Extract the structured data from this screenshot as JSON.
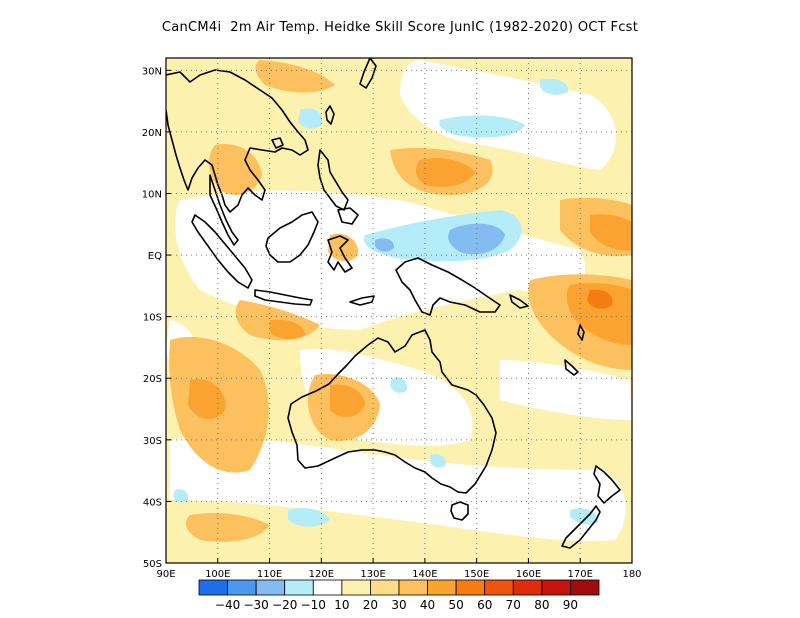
{
  "title": "CanCM4i  2m Air Temp. Heidke Skill Score JunIC (1982-2020) OCT Fcst",
  "map": {
    "lon_range": [
      90,
      180
    ],
    "lat_range": [
      -50,
      32
    ],
    "lat_ticks": [
      {
        "lat": 30,
        "label": "30N"
      },
      {
        "lat": 20,
        "label": "20N"
      },
      {
        "lat": 10,
        "label": "10N"
      },
      {
        "lat": 0,
        "label": "EQ"
      },
      {
        "lat": -10,
        "label": "10S"
      },
      {
        "lat": -20,
        "label": "20S"
      },
      {
        "lat": -30,
        "label": "30S"
      },
      {
        "lat": -40,
        "label": "40S"
      },
      {
        "lat": -50,
        "label": "50S"
      }
    ],
    "lon_ticks": [
      {
        "lon": 90,
        "label": "90E"
      },
      {
        "lon": 100,
        "label": "100E"
      },
      {
        "lon": 110,
        "label": "110E"
      },
      {
        "lon": 120,
        "label": "120E"
      },
      {
        "lon": 130,
        "label": "130E"
      },
      {
        "lon": 140,
        "label": "140E"
      },
      {
        "lon": 150,
        "label": "150E"
      },
      {
        "lon": 160,
        "label": "160E"
      },
      {
        "lon": 170,
        "label": "170E"
      },
      {
        "lon": 180,
        "label": "180"
      }
    ]
  },
  "colorbar": {
    "colors": [
      "#1e6eeb",
      "#4d97ee",
      "#84bcf2",
      "#b4ecf8",
      "#ffffff",
      "#fdf1b0",
      "#fcdc8a",
      "#fcc15e",
      "#fba330",
      "#f67c12",
      "#ee5310",
      "#de2c0e",
      "#c4140c",
      "#a10d0a"
    ],
    "labels": [
      "-40",
      "-30",
      "-20",
      "-10",
      "10",
      "20",
      "30",
      "40",
      "50",
      "60",
      "70",
      "80",
      "90"
    ]
  },
  "colors": {
    "light_yellow": "#fdf1b0",
    "yellow": "#fcdc8a",
    "light_orange": "#fcc15e",
    "orange": "#fba330",
    "dark_orange": "#f67c12",
    "light_cyan": "#b4ecf8",
    "light_blue": "#84bcf2"
  }
}
